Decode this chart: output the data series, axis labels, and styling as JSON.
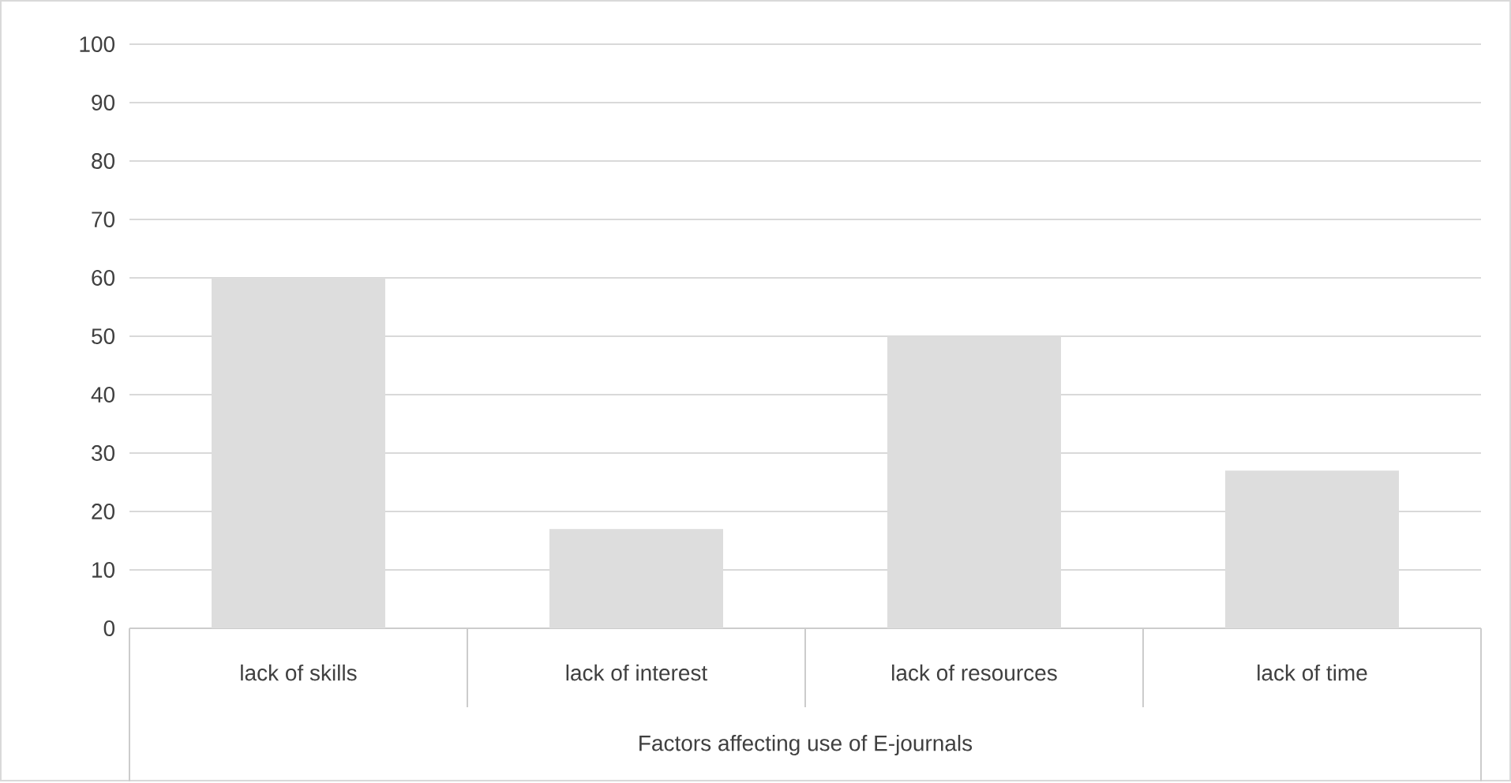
{
  "chart_data": {
    "type": "bar",
    "xlabel": "Factors affecting use of E-journals",
    "categories": [
      "lack of skills",
      "lack of interest",
      "lack of resources",
      "lack of time"
    ],
    "values": [
      60,
      17,
      50,
      27
    ],
    "color": "#dddddd",
    "ylim": [
      0,
      100
    ],
    "yticks": [
      0,
      10,
      20,
      30,
      40,
      50,
      60,
      70,
      80,
      90,
      100
    ],
    "grid": "y"
  }
}
